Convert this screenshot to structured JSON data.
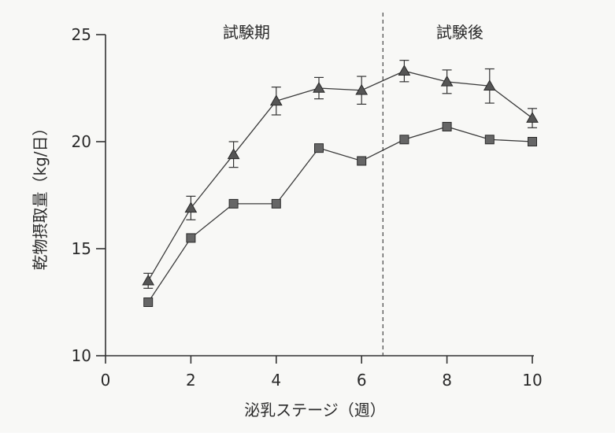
{
  "chart_data": {
    "type": "line",
    "title": "",
    "xlabel": "泌乳ステージ（週）",
    "ylabel": "乾物摂取量（kg/日）",
    "xlim": [
      0,
      10
    ],
    "ylim": [
      10,
      25
    ],
    "xticks": [
      0,
      2,
      4,
      6,
      8,
      10
    ],
    "yticks": [
      10,
      15,
      20,
      25
    ],
    "grid": false,
    "legend": "none",
    "divider_x": 6.5,
    "period_labels": [
      {
        "text": "試験期",
        "x": 3.3
      },
      {
        "text": "試験後",
        "x": 8.3
      }
    ],
    "series": [
      {
        "marker": "triangle",
        "color": "#555555",
        "x": [
          1,
          2,
          3,
          4,
          5,
          6,
          7,
          8,
          9,
          10
        ],
        "y": [
          13.5,
          16.9,
          19.4,
          21.9,
          22.5,
          22.4,
          23.3,
          22.8,
          22.6,
          21.1
        ],
        "error": [
          0.35,
          0.55,
          0.6,
          0.65,
          0.5,
          0.65,
          0.5,
          0.55,
          0.8,
          0.45
        ]
      },
      {
        "marker": "square",
        "color": "#666666",
        "x": [
          1,
          2,
          3,
          4,
          5,
          6,
          7,
          8,
          9,
          10
        ],
        "y": [
          12.5,
          15.5,
          17.1,
          17.1,
          19.7,
          19.1,
          20.1,
          20.7,
          20.1,
          20.0
        ]
      }
    ]
  }
}
